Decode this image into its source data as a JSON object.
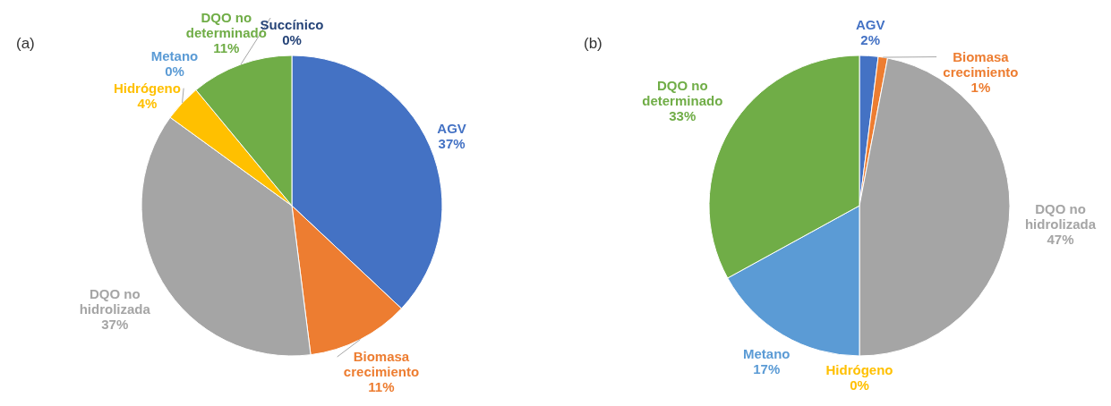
{
  "chart_data": [
    {
      "type": "pie",
      "title": "(a)",
      "categories": [
        "AGV",
        "Biomasa crecimiento",
        "DQO no hidrolizada",
        "Hidrógeno",
        "Metano",
        "DQO no determinado",
        "Succínico"
      ],
      "values": [
        37,
        11,
        37,
        4,
        0,
        11,
        0
      ],
      "value_labels": [
        "37%",
        "11%",
        "37%",
        "4%",
        "0%",
        "11%",
        "0%"
      ],
      "colors": [
        "#4472c4",
        "#ed7d31",
        "#a5a5a5",
        "#ffc000",
        "#5b9bd5",
        "#70ad47",
        "#264478"
      ]
    },
    {
      "type": "pie",
      "title": "(b)",
      "categories": [
        "AGV",
        "Biomasa crecimiento",
        "DQO no hidrolizada",
        "Hidrógeno",
        "Metano",
        "DQO no determinado"
      ],
      "values": [
        2,
        1,
        47,
        0,
        17,
        33
      ],
      "value_labels": [
        "2%",
        "1%",
        "47%",
        "0%",
        "17%",
        "33%"
      ],
      "colors": [
        "#4472c4",
        "#ed7d31",
        "#a5a5a5",
        "#ffc000",
        "#5b9bd5",
        "#70ad47"
      ]
    }
  ]
}
